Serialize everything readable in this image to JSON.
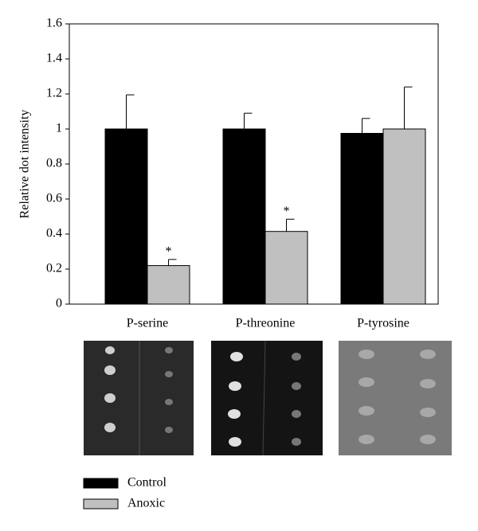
{
  "chart_data": {
    "type": "bar",
    "ylabel": "Relative dot intensity",
    "categories": [
      "P-serine",
      "P-threonine",
      "P-tyrosine"
    ],
    "series": [
      {
        "name": "Control",
        "color": "#000000",
        "values": [
          1,
          1,
          0.975
        ],
        "errors": [
          0.195,
          0.09,
          0.085
        ]
      },
      {
        "name": "Anoxic",
        "color": "#c0c0c0",
        "values": [
          0.22,
          0.415,
          1.0
        ],
        "errors": [
          0.035,
          0.07,
          0.24
        ]
      }
    ],
    "annotations": [
      {
        "text": "*",
        "category": "P-serine",
        "series": "Anoxic"
      },
      {
        "text": "*",
        "category": "P-threonine",
        "series": "Anoxic"
      }
    ],
    "ylim": [
      0,
      1.6
    ],
    "yticks": [
      0,
      0.2,
      0.4,
      0.6,
      0.8,
      1,
      1.2,
      1.4,
      1.6
    ],
    "grid": false,
    "legend": "bottom-left"
  }
}
